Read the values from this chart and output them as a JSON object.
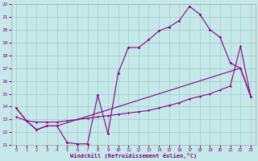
{
  "xlabel": "Windchill (Refroidissement éolien,°C)",
  "bg_color": "#c5e8e8",
  "grid_color": "#aad0d0",
  "line_color": "#880088",
  "xlim": [
    -0.5,
    23.5
  ],
  "ylim": [
    11,
    22
  ],
  "xticks": [
    0,
    1,
    2,
    3,
    4,
    5,
    6,
    7,
    8,
    9,
    10,
    11,
    12,
    13,
    14,
    15,
    16,
    17,
    18,
    19,
    20,
    21,
    22,
    23
  ],
  "yticks": [
    11,
    12,
    13,
    14,
    15,
    16,
    17,
    18,
    19,
    20,
    21,
    22
  ],
  "line1_x": [
    0,
    1,
    2,
    3,
    4,
    5,
    6,
    7,
    8,
    9,
    10,
    11,
    12,
    13,
    14,
    15,
    16,
    17,
    18,
    19,
    20,
    21,
    22,
    23
  ],
  "line1_y": [
    13.9,
    12.9,
    12.2,
    12.5,
    12.5,
    11.2,
    11.1,
    11.1,
    14.9,
    11.9,
    16.6,
    18.6,
    18.6,
    19.2,
    19.9,
    20.2,
    20.7,
    21.8,
    21.2,
    20.0,
    19.4,
    17.4,
    17.0,
    14.8
  ],
  "line2_x": [
    0,
    1,
    2,
    3,
    4,
    22,
    23
  ],
  "line2_y": [
    13.9,
    12.9,
    12.2,
    12.5,
    12.5,
    17.0,
    14.8
  ],
  "line3_x": [
    0,
    1,
    2,
    3,
    4,
    5,
    6,
    7,
    8,
    9,
    10,
    11,
    12,
    13,
    14,
    15,
    16,
    17,
    18,
    19,
    20,
    21,
    22,
    23
  ],
  "line3_y": [
    13.2,
    12.9,
    12.8,
    12.8,
    12.8,
    12.9,
    13.0,
    13.1,
    13.2,
    13.3,
    13.4,
    13.5,
    13.6,
    13.7,
    13.9,
    14.1,
    14.3,
    14.6,
    14.8,
    15.0,
    15.3,
    15.6,
    18.7,
    14.8
  ]
}
